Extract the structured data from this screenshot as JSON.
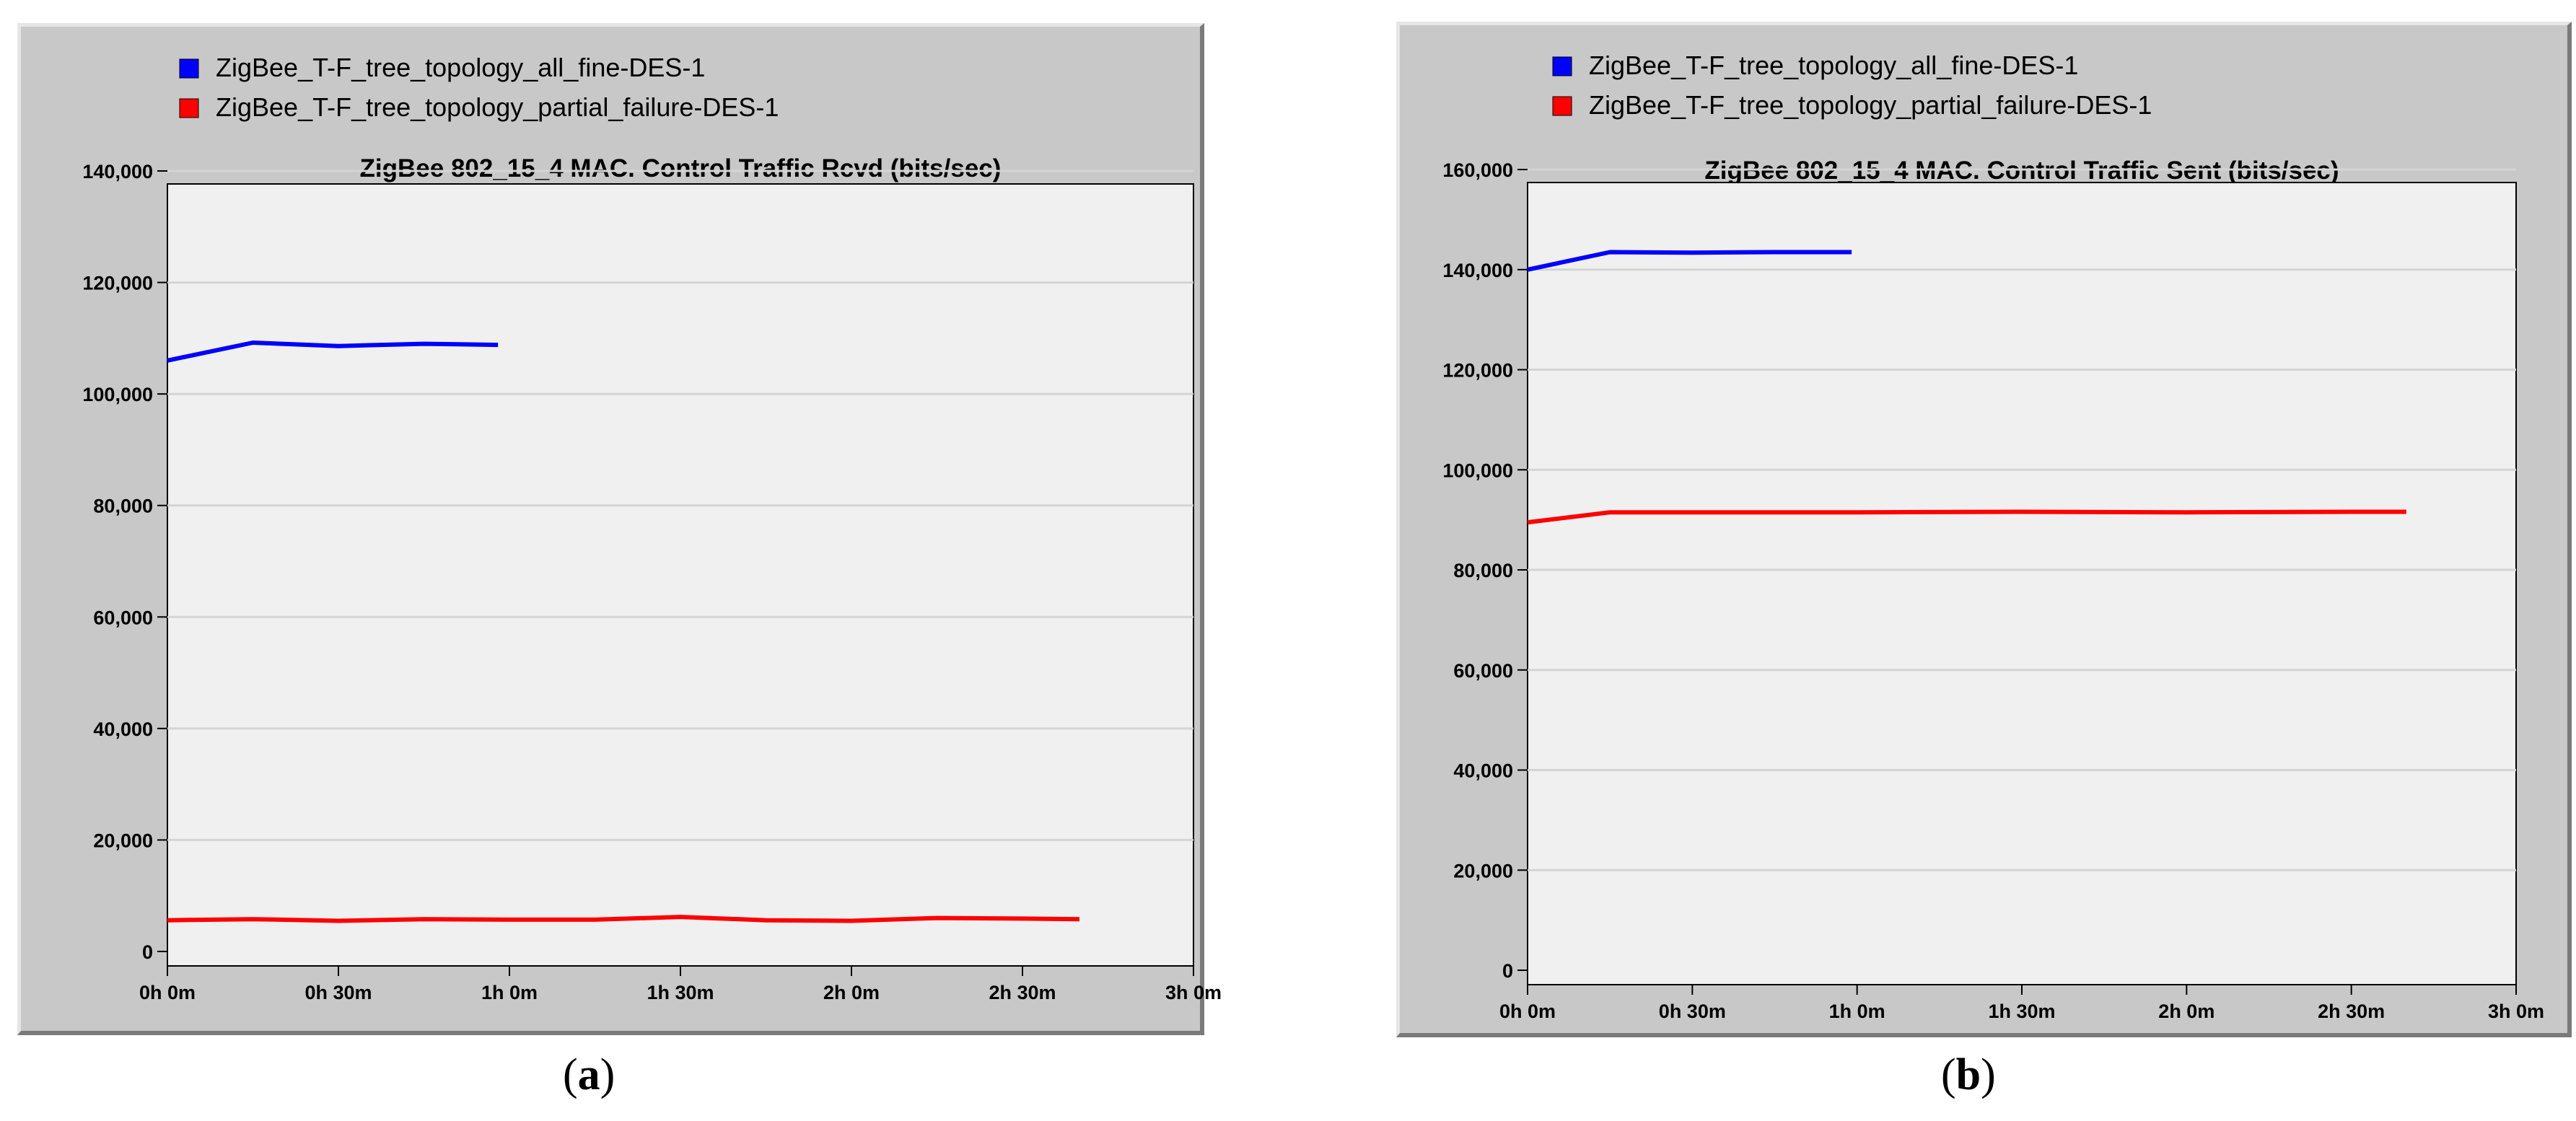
{
  "chart_data": [
    {
      "type": "line",
      "panel_id": "a",
      "caption_letter": "a",
      "title": "ZigBee 802_15_4 MAC. Control Traffic Rcvd (bits/sec)",
      "xlabel": "",
      "ylabel": "",
      "xlim_minutes": [
        0,
        180
      ],
      "ylim": [
        0,
        140000
      ],
      "y_ticks": [
        0,
        20000,
        40000,
        60000,
        80000,
        100000,
        120000,
        140000
      ],
      "y_tick_labels": [
        "0",
        "20,000",
        "40,000",
        "60,000",
        "80,000",
        "100,000",
        "120,000",
        "140,000"
      ],
      "x_ticks_minutes": [
        0,
        30,
        60,
        90,
        120,
        150,
        180
      ],
      "x_tick_labels": [
        "0h 0m",
        "0h 30m",
        "1h 0m",
        "1h 30m",
        "2h 0m",
        "2h 30m",
        "3h 0m"
      ],
      "grid": true,
      "legend_position": "top-left",
      "series": [
        {
          "name": "ZigBee_T-F_tree_topology_all_fine-DES-1",
          "color": "#0000ff",
          "points": [
            [
              0,
              106000
            ],
            [
              15,
              109200
            ],
            [
              30,
              108600
            ],
            [
              45,
              109000
            ],
            [
              58,
              108800
            ]
          ]
        },
        {
          "name": "ZigBee_T-F_tree_topology_partial_failure-DES-1",
          "color": "#ff0000",
          "points": [
            [
              0,
              5600
            ],
            [
              15,
              5800
            ],
            [
              30,
              5500
            ],
            [
              45,
              5800
            ],
            [
              60,
              5700
            ],
            [
              75,
              5700
            ],
            [
              90,
              6200
            ],
            [
              105,
              5600
            ],
            [
              120,
              5500
            ],
            [
              135,
              6000
            ],
            [
              150,
              5900
            ],
            [
              160,
              5800
            ]
          ]
        }
      ]
    },
    {
      "type": "line",
      "panel_id": "b",
      "caption_letter": "b",
      "title": "ZigBee 802_15_4 MAC. Control Traffic Sent (bits/sec)",
      "xlabel": "",
      "ylabel": "",
      "xlim_minutes": [
        0,
        180
      ],
      "ylim": [
        0,
        160000
      ],
      "y_ticks": [
        0,
        20000,
        40000,
        60000,
        80000,
        100000,
        120000,
        140000,
        160000
      ],
      "y_tick_labels": [
        "0",
        "20,000",
        "40,000",
        "60,000",
        "80,000",
        "100,000",
        "120,000",
        "140,000",
        "160,000"
      ],
      "x_ticks_minutes": [
        0,
        30,
        60,
        90,
        120,
        150,
        180
      ],
      "x_tick_labels": [
        "0h 0m",
        "0h 30m",
        "1h 0m",
        "1h 30m",
        "2h 0m",
        "2h 30m",
        "3h 0m"
      ],
      "grid": true,
      "legend_position": "top-left",
      "series": [
        {
          "name": "ZigBee_T-F_tree_topology_all_fine-DES-1",
          "color": "#0000ff",
          "points": [
            [
              0,
              140000
            ],
            [
              15,
              143500
            ],
            [
              30,
              143400
            ],
            [
              45,
              143500
            ],
            [
              59,
              143500
            ]
          ]
        },
        {
          "name": "ZigBee_T-F_tree_topology_partial_failure-DES-1",
          "color": "#ff0000",
          "points": [
            [
              0,
              89500
            ],
            [
              15,
              91500
            ],
            [
              30,
              91500
            ],
            [
              60,
              91500
            ],
            [
              90,
              91600
            ],
            [
              120,
              91500
            ],
            [
              150,
              91600
            ],
            [
              160,
              91600
            ]
          ]
        }
      ]
    }
  ],
  "colors": {
    "panel_bg": "#c8c8c8",
    "plot_bg": "#f0f0f0",
    "gridline": "#d4d4d4"
  }
}
